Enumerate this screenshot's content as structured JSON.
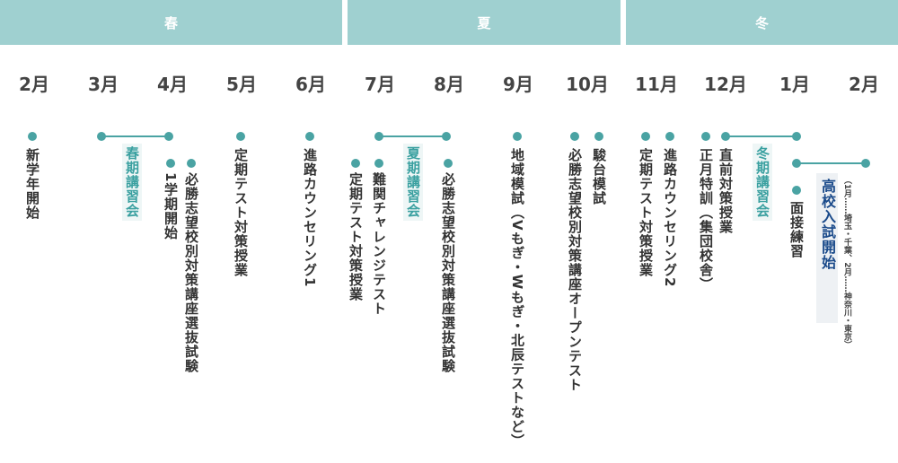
{
  "seasons": [
    "春",
    "夏",
    "冬"
  ],
  "months": [
    "2月",
    "3月",
    "4月",
    "5月",
    "6月",
    "7月",
    "8月",
    "9月",
    "10月",
    "11月",
    "12月",
    "1月",
    "2月"
  ],
  "events": {
    "feb_new_year": "新学年開始",
    "spring_course": "春期講習会",
    "apr_1": "1学期開始",
    "apr_selection": "必勝志望校別対策講座選抜試験",
    "may_test": "定期テスト対策授業",
    "jun_counseling": "進路カウンセリング1",
    "jul_test": "定期テスト対策授業",
    "jul_challenge": "難関チャレンジテスト",
    "summer_course": "夏期講習会",
    "aug_selection": "必勝志望校別対策講座選抜試験",
    "sep_mock": "地域模試（Vもぎ・Wもぎ・北辰テストなど）",
    "oct_open": "必勝志望校別対策講座オープンテスト",
    "oct_sundai": "駿台模試",
    "nov_test": "定期テスト対策授業",
    "nov_counseling": "進路カウンセリング2",
    "dec_special": "正月特訓（集団校舎）",
    "dec_direct": "直前対策授業",
    "winter_course": "冬期講習会",
    "jan_interview": "面接練習",
    "exam_start": "高校入試開始",
    "exam_note": "（1月……埼玉・千葉、2月……神奈川・東京）"
  },
  "colors": {
    "season_bar": "#9fd0d0",
    "accent": "#4aa3a3",
    "exam_text": "#1a4a8a"
  }
}
